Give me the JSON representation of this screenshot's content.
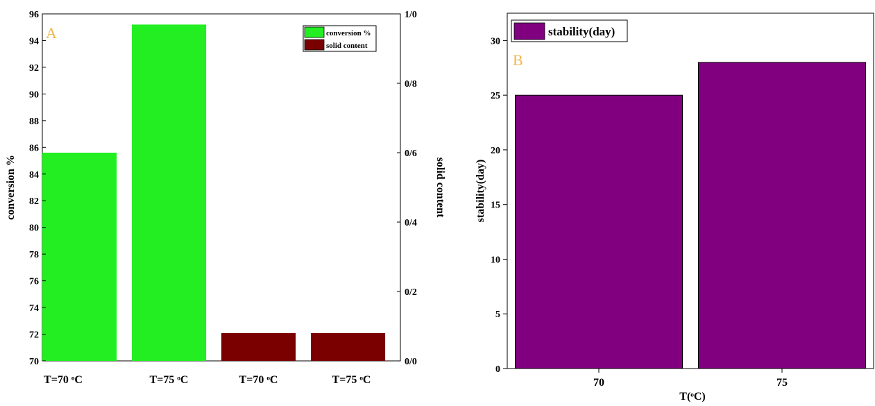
{
  "chart_data": [
    {
      "type": "bar",
      "panel_label": "A",
      "categories": [
        "T=70 ᵒC",
        "T=75 ᵒC",
        "T=70 ᵒC",
        "T=75 ᵒC"
      ],
      "series": [
        {
          "name": "conversion %",
          "axis": "left",
          "color": "#22ee22",
          "values": [
            85.6,
            95.2,
            null,
            null
          ]
        },
        {
          "name": "solid content",
          "axis": "right",
          "color": "#7a0000",
          "values": [
            null,
            null,
            0.08,
            0.08
          ]
        }
      ],
      "ylabel": "conversion %",
      "ylabel_right": "solid content",
      "ylim": [
        70,
        96
      ],
      "ylim_right": [
        0,
        1.0
      ],
      "yticks": [
        "70",
        "72",
        "74",
        "76",
        "78",
        "80",
        "82",
        "84",
        "86",
        "88",
        "90",
        "92",
        "94",
        "96"
      ],
      "yticks_right": [
        "0/0",
        "0/2",
        "0/4",
        "0/6",
        "0/8",
        "1/0"
      ],
      "legend_position": "top-right"
    },
    {
      "type": "bar",
      "panel_label": "B",
      "categories": [
        "70",
        "75"
      ],
      "series": [
        {
          "name": "stability(day)",
          "color": "#800080",
          "values": [
            25,
            28
          ]
        }
      ],
      "xlabel": "T(ᵒC)",
      "ylabel": "stability(day)",
      "ylim": [
        0,
        32.5
      ],
      "yticks": [
        "0",
        "5",
        "10",
        "15",
        "20",
        "25",
        "30"
      ],
      "legend_position": "top-left"
    }
  ]
}
